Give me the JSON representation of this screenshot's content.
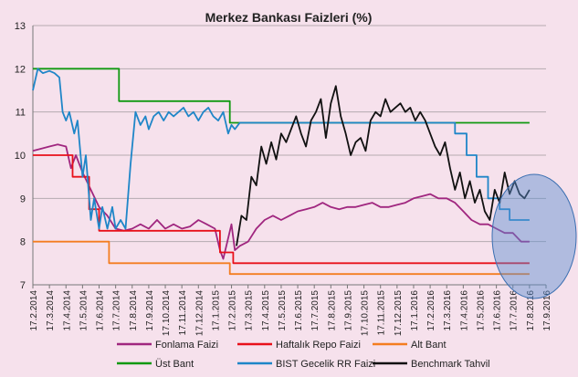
{
  "chart_data": {
    "type": "line",
    "title": "Merkez Bankası Faizleri (%)",
    "xlabel": "",
    "ylabel": "",
    "ylim": [
      7,
      13
    ],
    "yticks": [
      "7",
      "8",
      "9",
      "10",
      "11",
      "12",
      "13"
    ],
    "xticks": [
      "17.2.2014",
      "17.3.2014",
      "17.4.2014",
      "17.5.2014",
      "17.6.2014",
      "17.7.2014",
      "17.8.2014",
      "17.9.2014",
      "17.10.2014",
      "17.11.2014",
      "17.12.2014",
      "17.1.2015",
      "17.2.2015",
      "17.3.2015",
      "17.4.2015",
      "17.5.2015",
      "17.6.2015",
      "17.7.2015",
      "17.8.2015",
      "17.9.2015",
      "17.10.2015",
      "17.11.2015",
      "17.12.2015",
      "17.1.2016",
      "17.2.2016",
      "17.3.2016",
      "17.4.2016",
      "17.5.2016",
      "17.6.2016",
      "17.7.2016",
      "17.8.2016",
      "17.9.2016"
    ],
    "x_unit": "month index (0 = 17.2.2014)",
    "grid": true,
    "legend_position": "bottom",
    "annotations": [
      "ellipse highlighting Jun–Sep 2016"
    ],
    "series": [
      {
        "name": "Fonlama Faizi",
        "color": "#a0267f",
        "x": [
          0,
          0.5,
          1,
          1.5,
          2,
          2.3,
          2.6,
          3.0,
          3.5,
          4.0,
          4.5,
          5.0,
          5.5,
          6.0,
          6.5,
          7.0,
          7.5,
          8.0,
          8.5,
          9.0,
          9.5,
          10.0,
          10.5,
          11.0,
          11.3,
          11.5,
          12.0,
          12.2,
          12.5,
          13.0,
          13.5,
          14.0,
          14.5,
          15.0,
          15.5,
          16.0,
          16.5,
          17.0,
          17.5,
          18.0,
          18.5,
          19.0,
          19.5,
          20.0,
          20.5,
          21.0,
          21.5,
          22.0,
          22.5,
          23.0,
          23.5,
          24.0,
          24.5,
          25.0,
          25.5,
          26.0,
          26.5,
          27.0,
          27.5,
          28.0,
          28.5,
          29.0,
          29.5,
          30.0
        ],
        "y": [
          10.1,
          10.15,
          10.2,
          10.25,
          10.2,
          9.7,
          10.0,
          9.6,
          9.2,
          8.8,
          8.6,
          8.3,
          8.25,
          8.3,
          8.4,
          8.3,
          8.5,
          8.3,
          8.4,
          8.3,
          8.35,
          8.5,
          8.4,
          8.3,
          7.8,
          7.6,
          8.4,
          7.8,
          7.9,
          8.0,
          8.3,
          8.5,
          8.6,
          8.5,
          8.6,
          8.7,
          8.75,
          8.8,
          8.9,
          8.8,
          8.75,
          8.8,
          8.8,
          8.85,
          8.9,
          8.8,
          8.8,
          8.85,
          8.9,
          9.0,
          9.05,
          9.1,
          9.0,
          9.0,
          8.9,
          8.7,
          8.5,
          8.4,
          8.4,
          8.3,
          8.2,
          8.2,
          8.0,
          8.0
        ]
      },
      {
        "name": "Haftalık Repo Faizi",
        "color": "#e8101a",
        "x": [
          0,
          2.4,
          2.4,
          3.4,
          3.4,
          4.0,
          4.0,
          11.3,
          11.3,
          12.1,
          12.1,
          30.0
        ],
        "y": [
          10.0,
          10.0,
          9.5,
          9.5,
          8.75,
          8.75,
          8.25,
          8.25,
          7.75,
          7.75,
          7.5,
          7.5
        ]
      },
      {
        "name": "Alt Bant",
        "color": "#f47d20",
        "x": [
          0,
          4.6,
          4.6,
          11.9,
          11.9,
          30.0
        ],
        "y": [
          8.0,
          8.0,
          7.5,
          7.5,
          7.25,
          7.25
        ]
      },
      {
        "name": "Üst Bant",
        "color": "#119911",
        "x": [
          0,
          5.2,
          5.2,
          11.9,
          11.9,
          30.0
        ],
        "y": [
          12.0,
          12.0,
          11.25,
          11.25,
          10.75,
          10.75
        ]
      },
      {
        "name": "BIST Gecelik RR Faizi",
        "color": "#1f86c8",
        "x": [
          0,
          0.3,
          0.6,
          1.0,
          1.3,
          1.6,
          1.8,
          2.0,
          2.2,
          2.5,
          2.7,
          3.0,
          3.2,
          3.5,
          3.7,
          4.0,
          4.2,
          4.5,
          4.8,
          5.0,
          5.3,
          5.6,
          5.9,
          6.2,
          6.5,
          6.8,
          7.0,
          7.3,
          7.6,
          7.9,
          8.2,
          8.5,
          8.8,
          9.1,
          9.4,
          9.7,
          10.0,
          10.3,
          10.6,
          10.9,
          11.2,
          11.5,
          11.8,
          12.0,
          12.2,
          12.5,
          13.0,
          14.0,
          15.0,
          16.0,
          17.0,
          18.0,
          19.0,
          20.0,
          21.0,
          22.0,
          23.0,
          24.0,
          25.0,
          25.5,
          25.5,
          26.2,
          26.2,
          26.8,
          26.8,
          27.5,
          27.5,
          28.2,
          28.2,
          28.8,
          28.8,
          30.0
        ],
        "y": [
          11.5,
          12.0,
          11.9,
          11.95,
          11.9,
          11.8,
          11.0,
          10.8,
          11.0,
          10.5,
          10.8,
          9.5,
          10.0,
          8.5,
          9.0,
          8.3,
          8.8,
          8.3,
          8.8,
          8.3,
          8.5,
          8.3,
          9.8,
          11.0,
          10.7,
          10.9,
          10.6,
          10.9,
          11.0,
          10.8,
          11.0,
          10.9,
          11.0,
          11.1,
          10.9,
          11.0,
          10.8,
          11.0,
          11.1,
          10.9,
          10.8,
          11.0,
          10.5,
          10.7,
          10.6,
          10.75,
          10.75,
          10.75,
          10.75,
          10.75,
          10.75,
          10.75,
          10.75,
          10.75,
          10.75,
          10.75,
          10.75,
          10.75,
          10.75,
          10.75,
          10.5,
          10.5,
          10.0,
          10.0,
          9.5,
          9.5,
          9.0,
          9.0,
          8.75,
          8.75,
          8.5,
          8.5
        ]
      },
      {
        "name": "Benchmark Tahvil",
        "color": "#111111",
        "x": [
          12.3,
          12.6,
          12.9,
          13.2,
          13.5,
          13.8,
          14.1,
          14.4,
          14.7,
          15.0,
          15.3,
          15.6,
          15.9,
          16.2,
          16.5,
          16.8,
          17.1,
          17.4,
          17.7,
          18.0,
          18.3,
          18.6,
          18.9,
          19.2,
          19.5,
          19.8,
          20.1,
          20.4,
          20.7,
          21.0,
          21.3,
          21.6,
          21.9,
          22.2,
          22.5,
          22.8,
          23.1,
          23.4,
          23.7,
          24.0,
          24.3,
          24.6,
          24.9,
          25.2,
          25.5,
          25.8,
          26.1,
          26.4,
          26.7,
          27.0,
          27.3,
          27.6,
          27.9,
          28.2,
          28.5,
          28.8,
          29.1,
          29.4,
          29.7,
          30.0
        ],
        "y": [
          7.9,
          8.6,
          8.5,
          9.5,
          9.3,
          10.2,
          9.8,
          10.3,
          9.9,
          10.5,
          10.3,
          10.6,
          10.9,
          10.5,
          10.2,
          10.8,
          11.0,
          11.3,
          10.4,
          11.2,
          11.6,
          10.9,
          10.5,
          10.0,
          10.3,
          10.4,
          10.1,
          10.8,
          11.0,
          10.9,
          11.3,
          11.0,
          11.1,
          11.2,
          11.0,
          11.1,
          10.8,
          11.0,
          10.8,
          10.5,
          10.2,
          10.0,
          10.3,
          9.7,
          9.2,
          9.6,
          9.0,
          9.4,
          8.9,
          9.2,
          8.7,
          8.5,
          9.2,
          8.9,
          9.6,
          9.1,
          9.4,
          9.1,
          9.0,
          9.2
        ]
      }
    ]
  }
}
